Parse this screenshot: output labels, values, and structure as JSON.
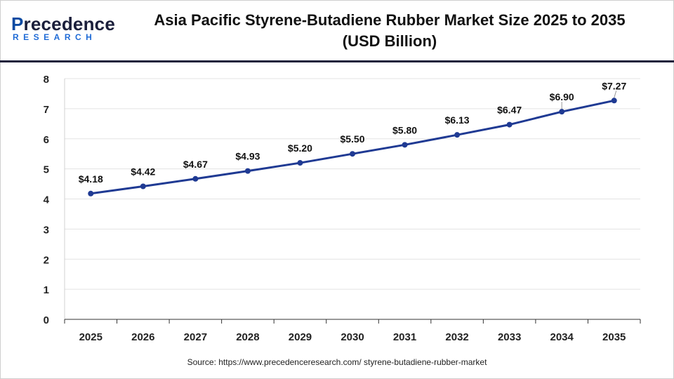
{
  "brand": {
    "logo_word_prefix": "P",
    "logo_word_rest": "recedence",
    "logo_sub": "RESEARCH",
    "colors": {
      "navy": "#1b1f3b",
      "blue": "#1f6bd6"
    }
  },
  "header": {
    "title_line1": "Asia Pacific Styrene-Butadiene Rubber Market Size 2025 to 2035",
    "title_line2": "(USD Billion)"
  },
  "footer": {
    "source": "Source: https://www.precedenceresearch.com/ styrene-butadiene-rubber-market"
  },
  "chart_data": {
    "type": "line",
    "title": "Asia Pacific Styrene-Butadiene Rubber Market Size 2025 to 2035 (USD Billion)",
    "categories": [
      "2025",
      "2026",
      "2027",
      "2028",
      "2029",
      "2030",
      "2031",
      "2032",
      "2033",
      "2034",
      "2035"
    ],
    "series": [
      {
        "values": [
          4.18,
          4.42,
          4.67,
          4.93,
          5.2,
          5.5,
          5.8,
          6.13,
          6.47,
          6.9,
          7.27
        ],
        "labels": [
          "$4.18",
          "$4.42",
          "$4.67",
          "$4.93",
          "$5.20",
          "$5.50",
          "$5.80",
          "$6.13",
          "$6.47",
          "$6.90",
          "$7.27"
        ],
        "color": "#1f3a93"
      }
    ],
    "ylim": [
      0,
      8
    ],
    "yticks": [
      0,
      1,
      2,
      3,
      4,
      5,
      6,
      7,
      8
    ],
    "grid": true,
    "legend": "none"
  }
}
